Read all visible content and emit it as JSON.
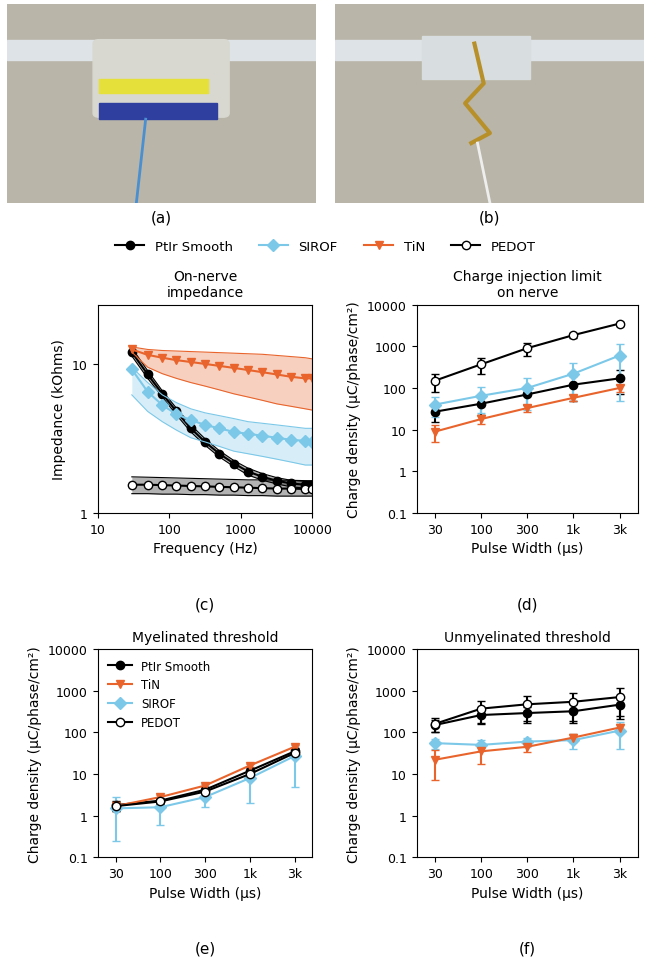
{
  "images": [
    {
      "caption": "(a)"
    },
    {
      "caption": "(b)"
    }
  ],
  "chart_data": [
    {
      "type": "line",
      "title": "On-nerve\nimpedance",
      "x_label": "Frequency (Hz)",
      "y_label": "Impedance (kOhms)",
      "caption": "(c)",
      "log": true,
      "legend": "top",
      "x": [
        30,
        50,
        80,
        126,
        200,
        316,
        500,
        800,
        1260,
        2000,
        3160,
        5000,
        7940,
        10000
      ],
      "xlim": [
        10,
        10000
      ],
      "xticks": [
        10,
        100,
        1000,
        10000
      ],
      "ylim": [
        1,
        25
      ],
      "yticks": [
        1,
        10
      ],
      "series": [
        {
          "name": "PtIr Smooth",
          "color": "#000000",
          "marker": "circle",
          "values": [
            12,
            8.5,
            6.3,
            4.8,
            3.7,
            3.0,
            2.5,
            2.15,
            1.9,
            1.75,
            1.65,
            1.58,
            1.55,
            1.55
          ],
          "lower": [
            11.3,
            8.0,
            6.0,
            4.55,
            3.5,
            2.85,
            2.38,
            2.05,
            1.8,
            1.66,
            1.57,
            1.5,
            1.47,
            1.47
          ],
          "upper": [
            12.8,
            9.0,
            6.6,
            5.05,
            3.9,
            3.15,
            2.62,
            2.25,
            2.0,
            1.84,
            1.73,
            1.66,
            1.63,
            1.63
          ]
        },
        {
          "name": "SIROF",
          "color": "#7cc8e8",
          "marker": "diamond",
          "values": [
            9.2,
            6.5,
            5.3,
            4.6,
            4.2,
            3.9,
            3.7,
            3.5,
            3.4,
            3.3,
            3.2,
            3.1,
            3.05,
            3.0
          ],
          "lower": [
            6.2,
            4.8,
            4.1,
            3.6,
            3.2,
            3.0,
            2.8,
            2.6,
            2.5,
            2.4,
            2.3,
            2.2,
            2.1,
            2.1
          ],
          "upper": [
            9.5,
            7.5,
            6.2,
            5.5,
            5.0,
            4.7,
            4.5,
            4.3,
            4.1,
            4.0,
            3.9,
            3.8,
            3.7,
            3.7
          ]
        },
        {
          "name": "TiN",
          "color": "#e8642c",
          "marker": "triangle_down",
          "values": [
            12.5,
            11.5,
            11.0,
            10.6,
            10.3,
            10.0,
            9.7,
            9.4,
            9.1,
            8.8,
            8.5,
            8.2,
            8.0,
            8.0
          ],
          "lower": [
            12,
            9.5,
            8.6,
            8.0,
            7.5,
            7.1,
            6.7,
            6.3,
            6.0,
            5.7,
            5.4,
            5.2,
            5.0,
            4.9
          ],
          "upper": [
            13,
            12.5,
            12.3,
            12.2,
            12.1,
            12.0,
            11.9,
            11.8,
            11.7,
            11.6,
            11.4,
            11.2,
            11,
            10.8
          ]
        },
        {
          "name": "PEDOT",
          "color": "#000000",
          "marker": "open_circle",
          "values": [
            1.55,
            1.55,
            1.54,
            1.53,
            1.52,
            1.51,
            1.5,
            1.49,
            1.48,
            1.47,
            1.46,
            1.46,
            1.45,
            1.45
          ],
          "lower": [
            1.35,
            1.35,
            1.34,
            1.34,
            1.33,
            1.33,
            1.32,
            1.32,
            1.31,
            1.31,
            1.3,
            1.3,
            1.3,
            1.3
          ],
          "upper": [
            1.75,
            1.74,
            1.73,
            1.72,
            1.71,
            1.7,
            1.69,
            1.68,
            1.67,
            1.67,
            1.66,
            1.66,
            1.65,
            1.65
          ]
        }
      ]
    },
    {
      "type": "line",
      "title": "Charge injection limit\non nerve",
      "x_label": "Pulse Width (μs)",
      "y_label": "Charge density (μC/phase/cm²)",
      "caption": "(d)",
      "log": "y",
      "categories": [
        "30",
        "100",
        "300",
        "1k",
        "3k"
      ],
      "ylim": [
        0.1,
        10000
      ],
      "yticks": [
        0.1,
        1,
        10,
        100,
        1000,
        10000
      ],
      "series": [
        {
          "name": "PtIr Smooth",
          "color": "#000000",
          "marker": "circle",
          "values": [
            27,
            42,
            70,
            120,
            170
          ],
          "errors": [
            12,
            20,
            30,
            70,
            100
          ]
        },
        {
          "name": "SIROF",
          "color": "#7cc8e8",
          "marker": "diamond",
          "values": [
            40,
            65,
            100,
            220,
            600
          ],
          "errors": [
            20,
            40,
            70,
            170,
            550
          ]
        },
        {
          "name": "TiN",
          "color": "#e8642c",
          "marker": "triangle_down",
          "values": [
            9,
            18,
            33,
            58,
            100
          ],
          "errors": [
            4,
            4,
            6,
            10,
            20
          ]
        },
        {
          "name": "PEDOT",
          "color": "#000000",
          "marker": "open_circle",
          "values": [
            150,
            370,
            900,
            1850,
            3500
          ],
          "errors": [
            70,
            150,
            300,
            250,
            400
          ]
        }
      ]
    },
    {
      "type": "line",
      "title": "Myelinated threshold",
      "x_label": "Pulse Width (μs)",
      "y_label": "Charge density (μC/phase/cm²)",
      "caption": "(e)",
      "log": "y",
      "legend": "upper left",
      "categories": [
        "30",
        "100",
        "300",
        "1k",
        "3k"
      ],
      "ylim": [
        0.1,
        10000
      ],
      "yticks": [
        0.1,
        1,
        10,
        100,
        1000,
        10000
      ],
      "series": [
        {
          "name": "PtIr Smooth",
          "color": "#000000",
          "marker": "circle",
          "values": [
            1.8,
            2.3,
            4.2,
            12,
            35
          ],
          "errors": [
            0.5,
            0.4,
            0.7,
            2,
            6
          ]
        },
        {
          "name": "TiN",
          "color": "#e8642c",
          "marker": "triangle_down",
          "values": [
            1.7,
            2.8,
            5.3,
            16,
            45
          ],
          "errors": [
            0.4,
            0.3,
            0.6,
            1.5,
            5
          ]
        },
        {
          "name": "SIROF",
          "color": "#7cc8e8",
          "marker": "diamond",
          "values": [
            1.5,
            1.6,
            2.8,
            8,
            27
          ],
          "errors": [
            1.25,
            1.0,
            1.2,
            6,
            22
          ]
        },
        {
          "name": "PEDOT",
          "color": "#000000",
          "marker": "open_circle",
          "values": [
            1.7,
            2.2,
            3.8,
            10,
            32
          ],
          "errors": [
            0.4,
            0.3,
            0.6,
            2,
            6
          ]
        }
      ]
    },
    {
      "type": "line",
      "title": "Unmyelinated threshold",
      "x_label": "Pulse Width (μs)",
      "y_label": "Charge density (μC/phase/cm²)",
      "caption": "(f)",
      "log": "y",
      "categories": [
        "30",
        "100",
        "300",
        "1k",
        "3k"
      ],
      "ylim": [
        0.1,
        10000
      ],
      "yticks": [
        0.1,
        1,
        10,
        100,
        1000,
        10000
      ],
      "series": [
        {
          "name": "PtIr Smooth",
          "color": "#000000",
          "marker": "circle",
          "values": [
            150,
            260,
            290,
            320,
            460
          ],
          "errors": [
            50,
            100,
            120,
            150,
            250
          ]
        },
        {
          "name": "PEDOT",
          "color": "#000000",
          "marker": "open_circle",
          "values": [
            160,
            370,
            470,
            540,
            700
          ],
          "errors": [
            60,
            200,
            280,
            350,
            450
          ]
        },
        {
          "name": "SIROF",
          "color": "#7cc8e8",
          "marker": "diamond",
          "values": [
            55,
            50,
            60,
            65,
            110
          ],
          "errors": [
            15,
            15,
            15,
            25,
            70
          ]
        },
        {
          "name": "TiN",
          "color": "#e8642c",
          "marker": "triangle_down",
          "values": [
            22,
            35,
            45,
            75,
            130
          ],
          "errors": [
            15,
            18,
            12,
            15,
            30
          ]
        }
      ]
    }
  ]
}
